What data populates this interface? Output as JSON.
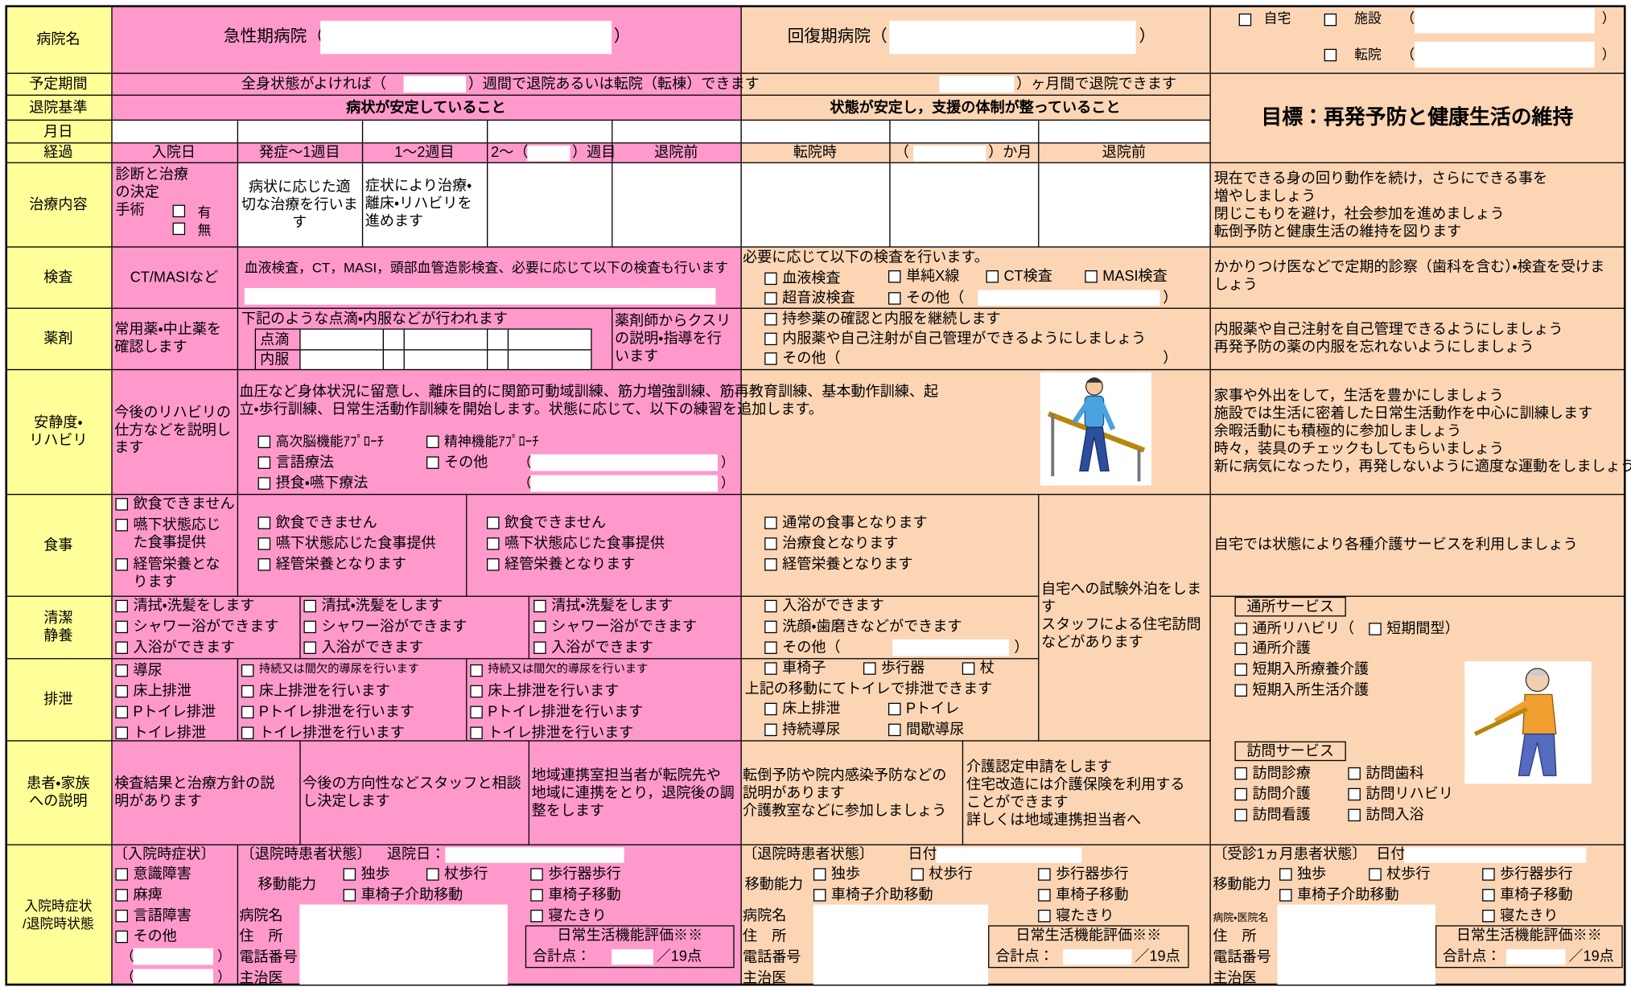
{
  "row_labels": [
    "病院名",
    "予定期間",
    "退院基準",
    "月日",
    "経過",
    "治療内容",
    "検査",
    "薬剤",
    "安静度・\nリハビリ",
    "食事",
    "清潔\n静養",
    "排泄",
    "患者・家族\nへの説明",
    "入院時症状\n/退院時状態"
  ],
  "hospital": {
    "acute": "急性期病院（",
    "recovery": "回復期病院（",
    "close": "）",
    "open": "（",
    "home": "自宅",
    "facility": "施設",
    "transfer": "転院"
  },
  "period": {
    "acute_before": "全身状態がよければ（",
    "acute_after": "）週間で退院あるいは転院（転棟）できます",
    "recovery_after": "）ヶ月間で退院できます"
  },
  "goal": "目標：再発予防と健康生活の維持",
  "criteria": {
    "acute": "病状が安定していること",
    "recovery": "状態が安定し，支援の体制が整っていること"
  },
  "course": {
    "acute": [
      "入院日",
      "発症～1週目",
      "1～2週目"
    ],
    "week_before": "2～（",
    "week_after": "）週目",
    "discharge": "退院前",
    "transfer": "転院時",
    "month_open": "（",
    "month_after": "）か月"
  },
  "treatment": {
    "decision": "診断と治療\nの決定",
    "surgery": "手術",
    "yes": "有",
    "no": "無",
    "acute_1": "病状に応じた適\n切な治療を行いま\nす",
    "acute_2": "症状により治療・\n離床・リハビリを\n進めます",
    "home": "現在できる身の回り動作を続け，さらにできる事を\n増やしましょう\n閉じこもりを避け，社会参加を進めましょう\n転倒予防と健康生活の維持を図ります"
  },
  "exam": {
    "admission": "CT/MASIなど",
    "acute": "血液検査，CT，MASI，頭部血管造影検査、必要に応じて以下の検査も行います",
    "recovery": "必要に応じて以下の検査を行います。",
    "items": [
      "血液検査",
      "単純X線",
      "CT検査",
      "MASI検査",
      "超音波検査",
      "その他（"
    ],
    "close": "）",
    "home": "かかりつけ医などで定期的診察（歯科を含む）・検査を受けま\nしょう"
  },
  "medication": {
    "admission": "常用薬・中止薬を\n確認します",
    "acute": "下記のような点滴・内服などが行われます",
    "drip": "点滴",
    "oral": "内服",
    "pharmacist": "薬剤師からクスリ\nの説明・指導を行\nいます",
    "recovery": [
      "持参薬の確認と内服を継続します",
      "内服薬や自己注射が自己管理ができるようにしましょう",
      "その他（"
    ],
    "close": "）",
    "home": "内服薬や自己注射を自己管理できるようにしましょう\n再発予防の薬の内服を忘れないようにしましょう"
  },
  "rehab": {
    "admission": "今後のリハビリの\n仕方などを説明し\nます",
    "acute": "血圧など身体状況に留意し、離床目的に関節可動域訓練、筋力増強訓練、筋再教育訓練、基本動作訓練、起\n立・歩行訓練、日常生活動作訓練を開始します。状態に応じて、以下の練習を追加します。",
    "items": [
      "高次脳機能ｱﾌﾟﾛｰﾁ",
      "精神機能ｱﾌﾟﾛｰﾁ",
      "言語療法",
      "その他",
      "摂食・嚥下療法"
    ],
    "open": "（",
    "close": "）",
    "home": "家事や外出をして，生活を豊かにしましょう\n施設では生活に密着した日常生活動作を中心に訓練します\n余暇活動にも積極的に参加しましょう\n時々，装具のチェックもしてもらいましょう\n新に病気になったり，再発しないように適度な運動をしましょう"
  },
  "meal": {
    "admission": [
      "飲食できません",
      "嚥下状態応じ\nた食事提供",
      "経管栄養とな\nります"
    ],
    "acute": [
      "飲食できません",
      "嚥下状態応じた食事提供",
      "経管栄養となります"
    ],
    "recovery": [
      "通常の食事となります",
      "治療食となります",
      "経管栄養となります"
    ],
    "home": "自宅では状態により各種介護サービスを利用しましょう"
  },
  "trial_stay": "自宅への試験外泊をしま\nす\nスタッフによる住宅訪問\nなどがあります",
  "hygiene": {
    "acute": [
      "清拭・洗髪をします",
      "シャワー浴ができます",
      "入浴ができます"
    ],
    "recovery": [
      "入浴ができます",
      "洗顔・歯磨きなどができます",
      "その他（"
    ],
    "close": "）"
  },
  "excretion": {
    "admission": [
      "導尿",
      "床上排泄",
      "Pトイレ排泄",
      "トイレ排泄"
    ],
    "acute": [
      "持続又は間欠的導尿を行います",
      "床上排泄を行います",
      "Pトイレ排泄を行います",
      "トイレ排泄を行います"
    ],
    "mobility": [
      "車椅子",
      "歩行器",
      "杖"
    ],
    "toilet": "上記の移動にてトイレで排泄できます",
    "recovery": [
      "床上排泄",
      "Pトイレ",
      "持続導尿",
      "間歇導尿"
    ]
  },
  "services": {
    "day_title": "通所サービス",
    "day": [
      "通所リハビリ（",
      "短期間型）",
      "通所介護",
      "短期入所療養介護",
      "短期入所生活介護"
    ],
    "visit_title": "訪問サービス",
    "visit": [
      "訪問診療",
      "訪問歯科",
      "訪問介護",
      "訪問リハビリ",
      "訪問看護",
      "訪問入浴"
    ]
  },
  "explanation": {
    "acute": [
      "検査結果と治療方針の説\n明があります",
      "今後の方向性などスタッフと相談\nし決定します",
      "地域連携室担当者が転院先や\n地域に連携をとり，退院後の調\n整をします"
    ],
    "recovery": [
      "転倒予防や院内感染予防などの\n説明があります\n介護教室などに参加しましょう",
      "介護認定申請をします\n住宅改造には介護保険を利用する\nことができます\n詳しくは地域連携担当者へ"
    ]
  },
  "status": {
    "admission_title": "〔入院時症状〕",
    "admission": [
      "意識障害",
      "麻痺",
      "言語障害",
      "その他"
    ],
    "open": "（",
    "close": "）",
    "acute_title": "〔退院時患者状態〕",
    "discharge_date": "退院日：",
    "recovery_title": "〔退院時患者状態〕",
    "date": "日付：",
    "home_title": "〔受診1ヵ月患者状態〕",
    "mobility_label": "移動能力",
    "mobility": [
      "独歩",
      "杖歩行",
      "歩行器歩行",
      "車椅子介助移動",
      "車椅子移動",
      "寝たきり"
    ],
    "contact": [
      "病院名",
      "住　所",
      "電話番号",
      "主治医"
    ],
    "clinic": "病院・医院名",
    "adl": "日常生活機能評価※※",
    "total": "合計点：",
    "points": "／19点"
  }
}
